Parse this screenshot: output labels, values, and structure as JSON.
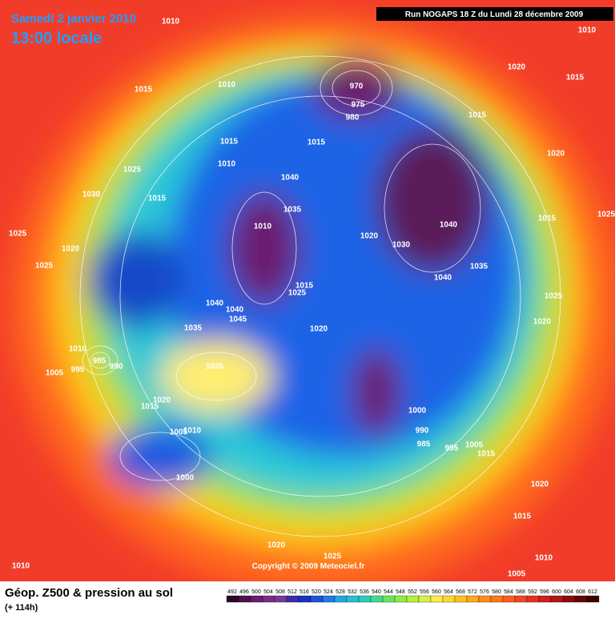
{
  "header": {
    "date": "Samedi 2 janvier 2010",
    "time": "13:00 locale"
  },
  "run": "Run NOGAPS 18 Z du Lundi 28 décembre 2009",
  "copyright": "Copyright © 2009 Meteociel.fr",
  "footer": {
    "title": "Géop. Z500 & pression au sol",
    "lead": "(+ 114h)"
  },
  "scale": {
    "labels": [
      492,
      496,
      500,
      504,
      508,
      512,
      516,
      520,
      524,
      528,
      532,
      536,
      540,
      544,
      548,
      552,
      556,
      560,
      564,
      568,
      572,
      576,
      580,
      584,
      588,
      592,
      596,
      600,
      604,
      608,
      612
    ]
  },
  "pressure_labels": [
    "1010",
    "1010",
    "1015",
    "1010",
    "970",
    "975",
    "980",
    "1015",
    "1020",
    "1015",
    "1020",
    "1025",
    "1015",
    "1010",
    "1015",
    "1030",
    "1040",
    "1015",
    "1035",
    "1010",
    "1020",
    "1030",
    "1040",
    "1015",
    "1025",
    "1025",
    "1020",
    "1025",
    "1035",
    "1040",
    "1015",
    "1025",
    "1025",
    "1040",
    "1040",
    "1045",
    "1035",
    "1020",
    "1020",
    "1010",
    "985",
    "990",
    "995",
    "1005",
    "1035",
    "1020",
    "1015",
    "1000",
    "990",
    "985",
    "995",
    "1005",
    "1015",
    "1005",
    "1010",
    "1000",
    "1020",
    "1015",
    "1020",
    "1025",
    "1010",
    "1010",
    "1005"
  ]
}
